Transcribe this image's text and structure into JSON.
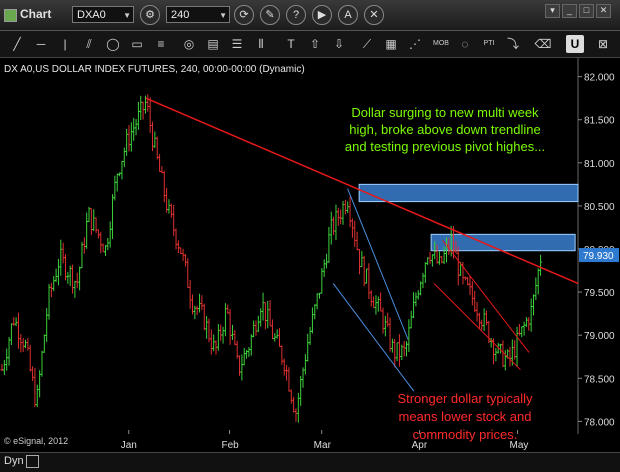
{
  "window": {
    "title": "Chart",
    "symbol_field": "DXA0",
    "interval_field": "240"
  },
  "toolbar_icons": [
    "settings-icon",
    "refresh-icon",
    "pencil-icon",
    "help-icon",
    "play-icon",
    "alert-icon",
    "tools-icon"
  ],
  "drawing_tools": [
    "line-tool",
    "ray-tool",
    "channel-tool",
    "ellipse-tool",
    "rectangle-tool",
    "fibonacci-tool",
    "target-tool",
    "grid-tool",
    "bars-tool",
    "text-tool",
    "up-arrow-tool",
    "down-arrow-tool",
    "gann-tool",
    "grid-pattern-tool",
    "mob-tool",
    "pti-tool",
    "zoom-tool",
    "eraser-tool",
    "magnet-tool",
    "delete-tool"
  ],
  "drawing_labels": {
    "mob": "MOB",
    "pti": "PTI"
  },
  "chart_header": "DX A0,US DOLLAR INDEX FUTURES, 240, 00:00-00:00 (Dynamic)",
  "copyright": "© eSignal, 2012",
  "status": {
    "mode": "Dyn"
  },
  "annotations": {
    "top": [
      "Dollar surging to new multi week",
      "high, broke above down trendline",
      "and testing previous pivot highes..."
    ],
    "bottom": [
      "Stronger dollar typically",
      "means lower stock and",
      "commodity prices."
    ]
  },
  "colors": {
    "background": "#000000",
    "up_bar": "#3cd23c",
    "down_bar": "#e03030",
    "trendline": "#e61919",
    "channel": "#4a90e2",
    "zone_fill": "#3a7ecf",
    "annotation_green": "#7cfc00",
    "annotation_red": "#ff2a2a",
    "price_tag": "#2f7ad1"
  },
  "chart_data": {
    "type": "ohlc",
    "symbol": "DX A0",
    "last_price": "79.930",
    "x_labels": [
      "Jan",
      "Feb",
      "Mar",
      "Apr",
      "May"
    ],
    "y_ticks": [
      "82.000",
      "81.500",
      "81.000",
      "80.500",
      "80.000",
      "79.500",
      "79.000",
      "78.500",
      "78.000"
    ],
    "ylim": [
      77.9,
      82.1
    ],
    "resistance_zones": [
      {
        "low": 80.55,
        "high": 80.75
      },
      {
        "low": 79.98,
        "high": 80.17
      }
    ],
    "main_trendline": [
      [
        0.25,
        81.75
      ],
      [
        1.0,
        79.6
      ]
    ],
    "swing_path": [
      [
        0.0,
        78.6
      ],
      [
        0.02,
        79.2
      ],
      [
        0.04,
        78.9
      ],
      [
        0.06,
        78.2
      ],
      [
        0.08,
        79.4
      ],
      [
        0.1,
        79.9
      ],
      [
        0.13,
        79.6
      ],
      [
        0.15,
        80.4
      ],
      [
        0.18,
        80.0
      ],
      [
        0.2,
        80.9
      ],
      [
        0.22,
        81.3
      ],
      [
        0.25,
        81.7
      ],
      [
        0.27,
        81.0
      ],
      [
        0.29,
        80.4
      ],
      [
        0.31,
        80.0
      ],
      [
        0.33,
        79.4
      ],
      [
        0.35,
        79.2
      ],
      [
        0.37,
        78.8
      ],
      [
        0.39,
        79.3
      ],
      [
        0.41,
        78.6
      ],
      [
        0.43,
        78.9
      ],
      [
        0.45,
        79.4
      ],
      [
        0.47,
        79.0
      ],
      [
        0.49,
        78.7
      ],
      [
        0.51,
        78.1
      ],
      [
        0.53,
        78.9
      ],
      [
        0.55,
        79.5
      ],
      [
        0.57,
        80.2
      ],
      [
        0.6,
        80.6
      ],
      [
        0.62,
        79.9
      ],
      [
        0.64,
        79.5
      ],
      [
        0.66,
        79.2
      ],
      [
        0.68,
        78.8
      ],
      [
        0.7,
        78.8
      ],
      [
        0.72,
        79.5
      ],
      [
        0.74,
        80.0
      ],
      [
        0.76,
        79.8
      ],
      [
        0.78,
        80.1
      ],
      [
        0.8,
        79.6
      ],
      [
        0.82,
        79.4
      ],
      [
        0.84,
        79.1
      ],
      [
        0.86,
        78.8
      ],
      [
        0.88,
        78.7
      ],
      [
        0.9,
        79.0
      ],
      [
        0.92,
        79.3
      ],
      [
        0.935,
        79.9
      ]
    ]
  }
}
